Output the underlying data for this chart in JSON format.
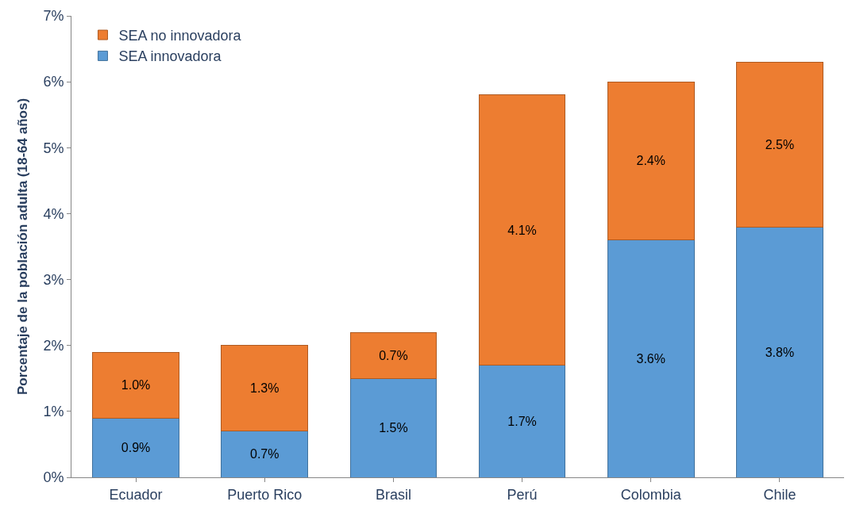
{
  "chart_data": {
    "type": "bar",
    "stacked": true,
    "ylabel": "Porcentaje de la población adulta (18-64 años)",
    "categories": [
      "Ecuador",
      "Puerto Rico",
      "Brasil",
      "Perú",
      "Colombia",
      "Chile"
    ],
    "series": [
      {
        "name": "SEA innovadora",
        "color": "#5b9bd5",
        "values": [
          0.9,
          0.7,
          1.5,
          1.7,
          3.6,
          3.8
        ],
        "value_labels": [
          "0.9%",
          "0.7%",
          "1.5%",
          "1.7%",
          "3.6%",
          "3.8%"
        ]
      },
      {
        "name": "SEA no innovadora",
        "color": "#ed7d31",
        "values": [
          1.0,
          1.3,
          0.7,
          4.1,
          2.4,
          2.5
        ],
        "value_labels": [
          "1.0%",
          "1.3%",
          "0.7%",
          "4.1%",
          "2.4%",
          "2.5%"
        ]
      }
    ],
    "ylim": [
      0,
      7
    ],
    "yticks": [
      {
        "value": 0,
        "label": "0%"
      },
      {
        "value": 1,
        "label": "1%"
      },
      {
        "value": 2,
        "label": "2%"
      },
      {
        "value": 3,
        "label": "3%"
      },
      {
        "value": 4,
        "label": "4%"
      },
      {
        "value": 5,
        "label": "5%"
      },
      {
        "value": 6,
        "label": "6%"
      },
      {
        "value": 7,
        "label": "7%"
      }
    ],
    "grid": false,
    "legend": "top left"
  }
}
